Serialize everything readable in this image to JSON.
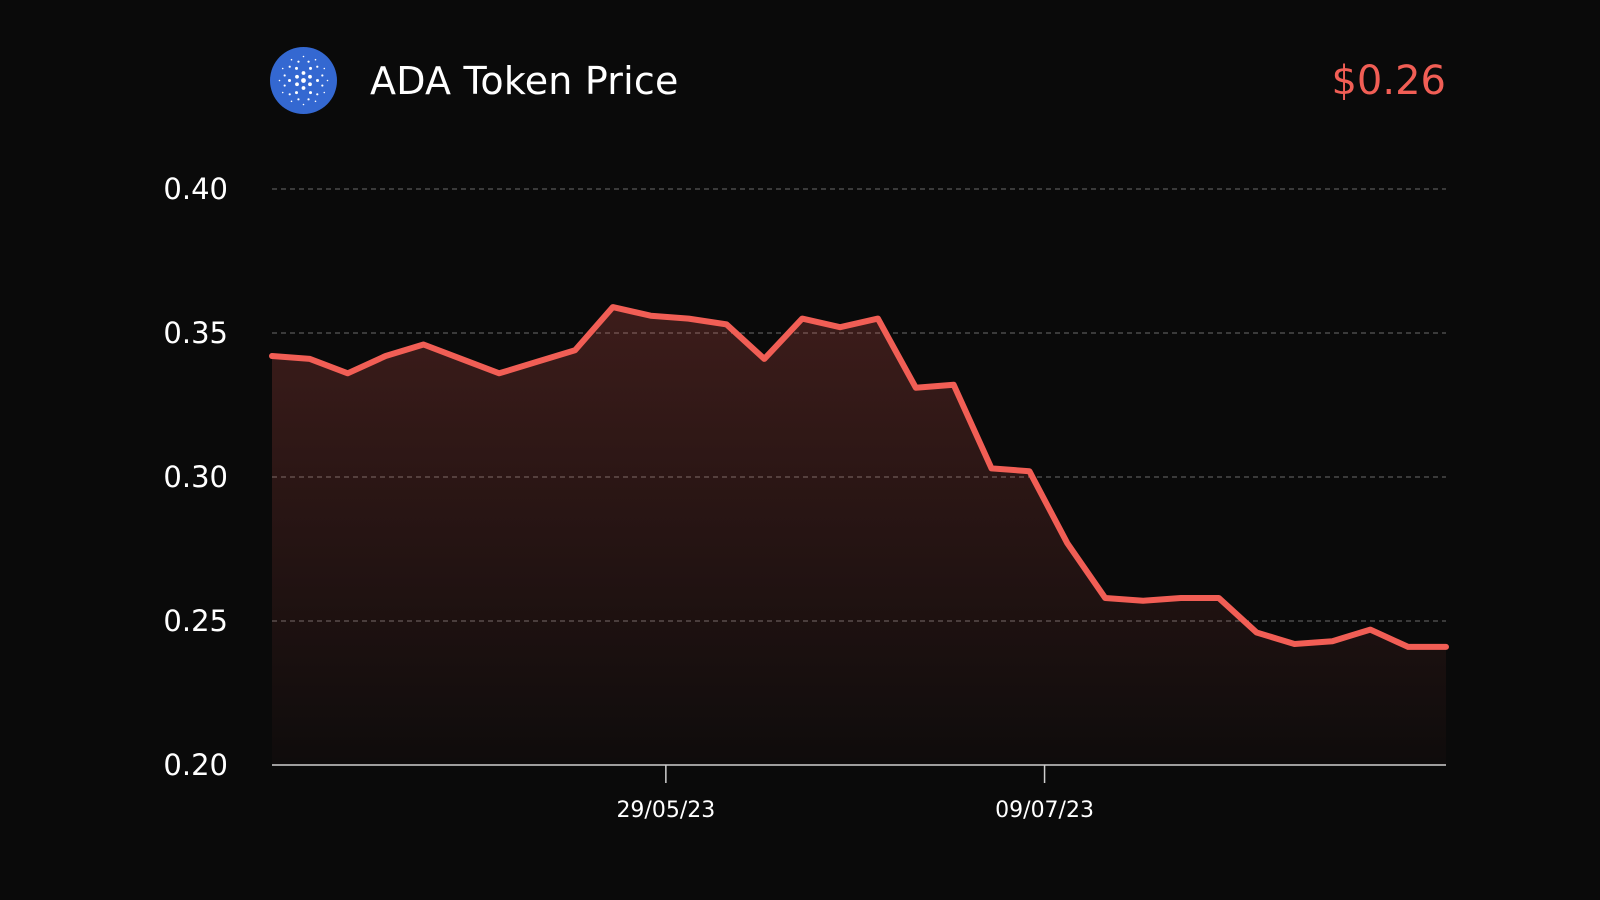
{
  "header": {
    "title": "ADA Token Price",
    "price": "$0.26",
    "logo_icon": "cardano-logo-icon",
    "logo_color": "#3468d1"
  },
  "chart_data": {
    "type": "area",
    "title": "ADA Token Price",
    "xlabel": "",
    "ylabel": "",
    "ylim": [
      0.2,
      0.4
    ],
    "yticks": [
      "0.40",
      "0.35",
      "0.30",
      "0.25",
      "0.20"
    ],
    "xtick_labels": [
      {
        "label": "29/05/23",
        "index": 10.4
      },
      {
        "label": "09/07/23",
        "index": 20.4
      }
    ],
    "grid": true,
    "line_color": "#f15e55",
    "series": [
      {
        "values": [
          0.342,
          0.341,
          0.336,
          0.342,
          0.346,
          0.341,
          0.336,
          0.34,
          0.344,
          0.359,
          0.356,
          0.355,
          0.353,
          0.341,
          0.355,
          0.352,
          0.355,
          0.331,
          0.332,
          0.303,
          0.302,
          0.277,
          0.258,
          0.257,
          0.258,
          0.258,
          0.246,
          0.242,
          0.243,
          0.247,
          0.241,
          0.241
        ]
      }
    ]
  }
}
